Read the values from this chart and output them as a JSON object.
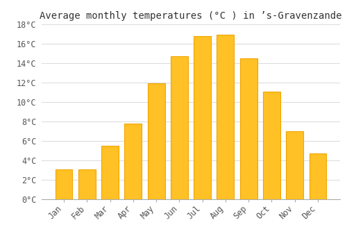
{
  "title": "Average monthly temperatures (°C ) in ’s-Gravenzande",
  "months": [
    "Jan",
    "Feb",
    "Mar",
    "Apr",
    "May",
    "Jun",
    "Jul",
    "Aug",
    "Sep",
    "Oct",
    "Nov",
    "Dec"
  ],
  "temperatures": [
    3.1,
    3.1,
    5.5,
    7.8,
    11.9,
    14.7,
    16.8,
    16.9,
    14.5,
    11.1,
    7.0,
    4.7
  ],
  "bar_color": "#FFC125",
  "bar_edge_color": "#F0A500",
  "ylim": [
    0,
    18
  ],
  "yticks": [
    0,
    2,
    4,
    6,
    8,
    10,
    12,
    14,
    16,
    18
  ],
  "ytick_labels": [
    "0°C",
    "2°C",
    "4°C",
    "6°C",
    "8°C",
    "10°C",
    "12°C",
    "14°C",
    "16°C",
    "18°C"
  ],
  "background_color": "#ffffff",
  "grid_color": "#dddddd",
  "title_fontsize": 10,
  "tick_fontsize": 8.5,
  "bar_width": 0.75
}
